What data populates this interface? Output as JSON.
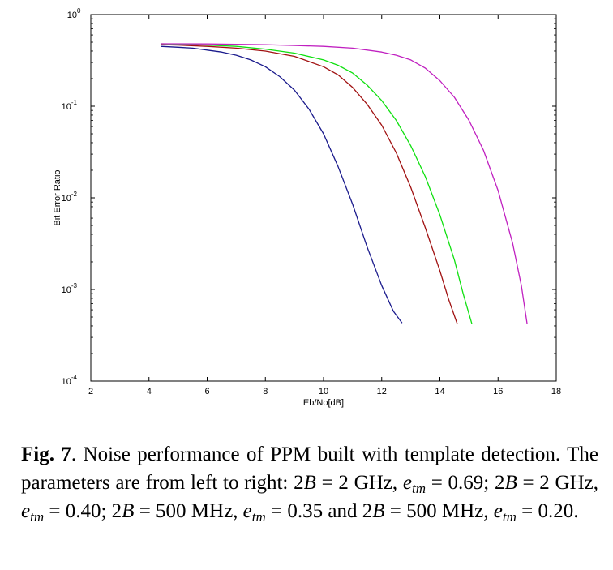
{
  "chart_data": {
    "type": "line",
    "xlabel": "Eb/No[dB]",
    "ylabel": "Bit Error Ratio",
    "xlim": [
      2,
      18
    ],
    "ylim": [
      0.0001,
      1
    ],
    "yscale": "log",
    "x_ticks": [
      "2",
      "4",
      "6",
      "8",
      "10",
      "12",
      "14",
      "16",
      "18"
    ],
    "y_ticks": [
      {
        "base": "10",
        "exp": "0"
      },
      {
        "base": "10",
        "exp": "-1"
      },
      {
        "base": "10",
        "exp": "-2"
      },
      {
        "base": "10",
        "exp": "-3"
      },
      {
        "base": "10",
        "exp": "-4"
      }
    ],
    "grid": false,
    "series": [
      {
        "color": "#1a1a8c",
        "x": [
          4.4,
          5.0,
          5.5,
          6.0,
          6.5,
          7.0,
          7.5,
          8.0,
          8.5,
          9.0,
          9.5,
          10.0,
          10.5,
          11.0,
          11.5,
          12.0,
          12.4,
          12.7
        ],
        "y": [
          0.45,
          0.44,
          0.43,
          0.41,
          0.39,
          0.36,
          0.32,
          0.27,
          0.21,
          0.15,
          0.093,
          0.05,
          0.022,
          0.0085,
          0.0029,
          0.0011,
          0.00058,
          0.00043
        ]
      },
      {
        "color": "#a01010",
        "x": [
          4.4,
          5.0,
          6.0,
          7.0,
          8.0,
          9.0,
          10.0,
          10.5,
          11.0,
          11.5,
          12.0,
          12.5,
          13.0,
          13.5,
          14.0,
          14.3,
          14.6
        ],
        "y": [
          0.47,
          0.465,
          0.45,
          0.43,
          0.4,
          0.35,
          0.27,
          0.22,
          0.16,
          0.105,
          0.062,
          0.031,
          0.013,
          0.0047,
          0.0016,
          0.00078,
          0.00042
        ]
      },
      {
        "color": "#10e010",
        "x": [
          4.4,
          5.0,
          6.0,
          7.0,
          8.0,
          9.0,
          10.0,
          10.5,
          11.0,
          11.5,
          12.0,
          12.5,
          13.0,
          13.5,
          14.0,
          14.5,
          14.8,
          15.1
        ],
        "y": [
          0.48,
          0.475,
          0.465,
          0.45,
          0.42,
          0.38,
          0.32,
          0.28,
          0.23,
          0.17,
          0.115,
          0.07,
          0.037,
          0.017,
          0.0065,
          0.0021,
          0.0009,
          0.00042
        ]
      },
      {
        "color": "#c020c0",
        "x": [
          4.4,
          6.0,
          8.0,
          9.0,
          10.0,
          11.0,
          12.0,
          12.5,
          13.0,
          13.5,
          14.0,
          14.5,
          15.0,
          15.5,
          16.0,
          16.5,
          16.8,
          17.0
        ],
        "y": [
          0.48,
          0.478,
          0.47,
          0.46,
          0.45,
          0.43,
          0.39,
          0.36,
          0.32,
          0.26,
          0.19,
          0.125,
          0.07,
          0.033,
          0.012,
          0.0032,
          0.0011,
          0.00042
        ]
      }
    ]
  },
  "caption": {
    "fig": "Fig. 7",
    "line1": ". Noise performance of PPM built with template detection. The parameters are from left to right: 2",
    "B": "B",
    "eq_2ghz": " = 2 GHz, ",
    "e": "e",
    "tm": "tm",
    "v1": " = 0.69; 2",
    "v2": " = 2 GHz, ",
    "v3": " = 0.40; 2",
    "v4": " = 500 MHz, ",
    "v5": " = 0.35 and 2",
    "v6": " = 500 MHz, ",
    "v7": " = 0.20."
  }
}
